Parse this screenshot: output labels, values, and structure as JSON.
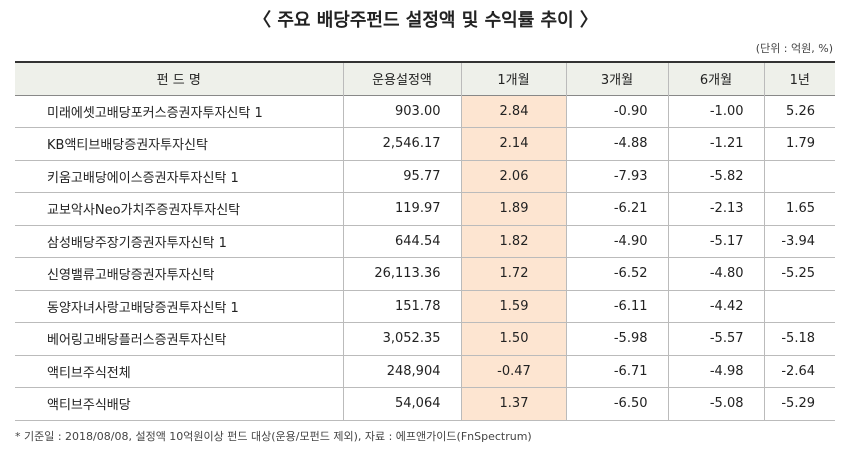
{
  "header": {
    "title": "〈 주요 배당주펀드 설정액 및 수익률 추이 〉",
    "unit": "(단위 : 억원, %)"
  },
  "table": {
    "columns": [
      "펀 드 명",
      "운용설정액",
      "1개월",
      "3개월",
      "6개월",
      "1년"
    ],
    "rows": [
      [
        "미래에셋고배당포커스증권자투자신탁 1",
        "903.00",
        "2.84",
        "-0.90",
        "-1.00",
        "5.26"
      ],
      [
        "KB액티브배당증권자투자신탁",
        "2,546.17",
        "2.14",
        "-4.88",
        "-1.21",
        "1.79"
      ],
      [
        "키움고배당에이스증권자투자신탁 1",
        "95.77",
        "2.06",
        "-7.93",
        "-5.82",
        null
      ],
      [
        "교보악사Neo가치주증권자투자신탁",
        "119.97",
        "1.89",
        "-6.21",
        "-2.13",
        "1.65"
      ],
      [
        "삼성배당주장기증권자투자신탁 1",
        "644.54",
        "1.82",
        "-4.90",
        "-5.17",
        "-3.94"
      ],
      [
        "신영밸류고배당증권자투자신탁",
        "26,113.36",
        "1.72",
        "-6.52",
        "-4.80",
        "-5.25"
      ],
      [
        "동양자녀사랑고배당증권투자신탁 1",
        "151.78",
        "1.59",
        "-6.11",
        "-4.42",
        null
      ],
      [
        "베어링고배당플러스증권투자신탁",
        "3,052.35",
        "1.50",
        "-5.98",
        "-5.57",
        "-5.18"
      ],
      [
        "액티브주식전체",
        "248,904",
        "-0.47",
        "-6.71",
        "-4.98",
        "-2.64"
      ],
      [
        "액티브주식배당",
        "54,064",
        "1.37",
        "-6.50",
        "-5.08",
        "-5.29"
      ]
    ]
  },
  "footnote": "* 기준일 : 2018/08/08, 설정액 10억원이상 펀드 대상(운용/모펀드 제외), 자료 : 에프앤가이드(FnSpectrum)"
}
